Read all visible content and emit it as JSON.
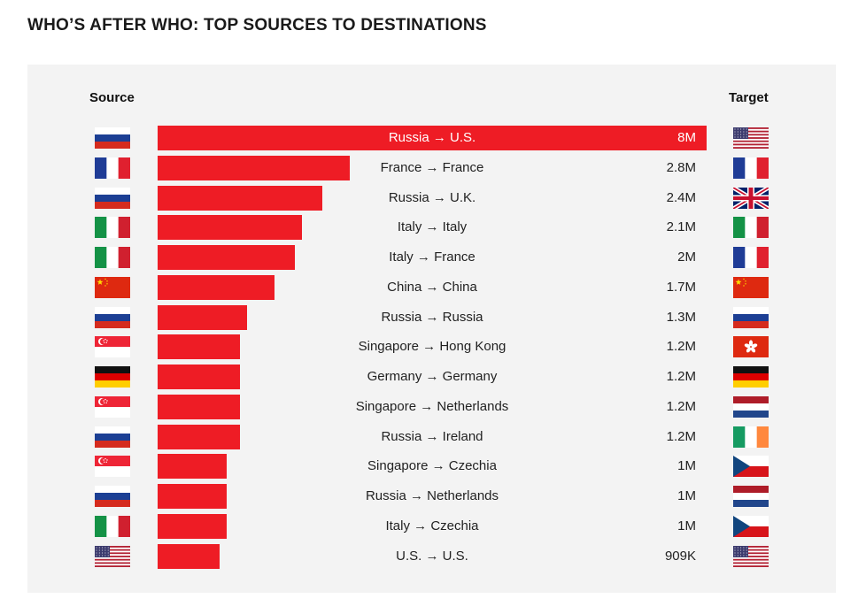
{
  "title": "WHO’S AFTER WHO: TOP SOURCES TO DESTINATIONS",
  "headers": {
    "source": "Source",
    "target": "Target"
  },
  "colors": {
    "bar": "#ee1c25",
    "panel": "#f3f3f3"
  },
  "chart_data": {
    "type": "bar",
    "orientation": "horizontal",
    "categories": [
      "Russia → U.S.",
      "France → France",
      "Russia → U.K.",
      "Italy → Italy",
      "Italy → France",
      "China → China",
      "Russia → Russia",
      "Singapore → Hong Kong",
      "Germany → Germany",
      "Singapore → Netherlands",
      "Russia → Ireland",
      "Singapore → Czechia",
      "Russia → Netherlands",
      "Italy → Czechia",
      "U.S. → U.S."
    ],
    "values": [
      8000000,
      2800000,
      2400000,
      2100000,
      2000000,
      1700000,
      1300000,
      1200000,
      1200000,
      1200000,
      1200000,
      1000000,
      1000000,
      1000000,
      909000
    ],
    "labels": [
      "8M",
      "2.8M",
      "2.4M",
      "2.1M",
      "2M",
      "1.7M",
      "1.3M",
      "1.2M",
      "1.2M",
      "1.2M",
      "1.2M",
      "1M",
      "1M",
      "1M",
      "909K"
    ],
    "sources": [
      "russia",
      "france",
      "russia",
      "italy",
      "italy",
      "china",
      "russia",
      "singapore",
      "germany",
      "singapore",
      "russia",
      "singapore",
      "russia",
      "italy",
      "us"
    ],
    "targets": [
      "us",
      "france",
      "uk",
      "italy",
      "france",
      "china",
      "russia",
      "hong-kong",
      "germany",
      "netherlands",
      "ireland",
      "czechia",
      "netherlands",
      "czechia",
      "us"
    ],
    "xlim": [
      0,
      8000000
    ]
  }
}
